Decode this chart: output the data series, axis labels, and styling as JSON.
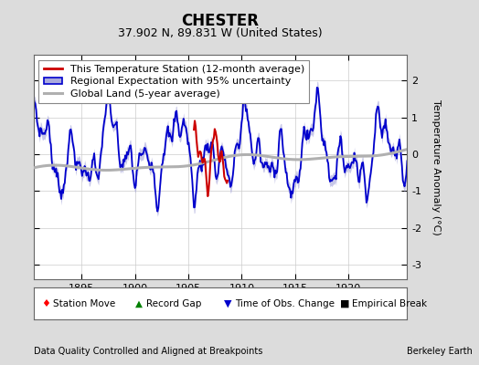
{
  "title": "CHESTER",
  "subtitle": "37.902 N, 89.831 W (United States)",
  "xlabel_left": "Data Quality Controlled and Aligned at Breakpoints",
  "xlabel_right": "Berkeley Earth",
  "ylabel": "Temperature Anomaly (°C)",
  "xlim": [
    1890.5,
    1925.5
  ],
  "ylim": [
    -3.4,
    2.7
  ],
  "yticks": [
    -3,
    -2,
    -1,
    0,
    1,
    2
  ],
  "xticks": [
    1895,
    1900,
    1905,
    1910,
    1915,
    1920
  ],
  "bg_color": "#dcdcdc",
  "plot_bg_color": "#ffffff",
  "regional_color": "#0000cc",
  "regional_fill_color": "#aaaadd",
  "station_color": "#cc0000",
  "global_color": "#b0b0b0",
  "global_lw": 2.2,
  "regional_lw": 1.3,
  "station_lw": 1.5,
  "title_fontsize": 12,
  "subtitle_fontsize": 9,
  "axis_fontsize": 8,
  "legend_fontsize": 8
}
